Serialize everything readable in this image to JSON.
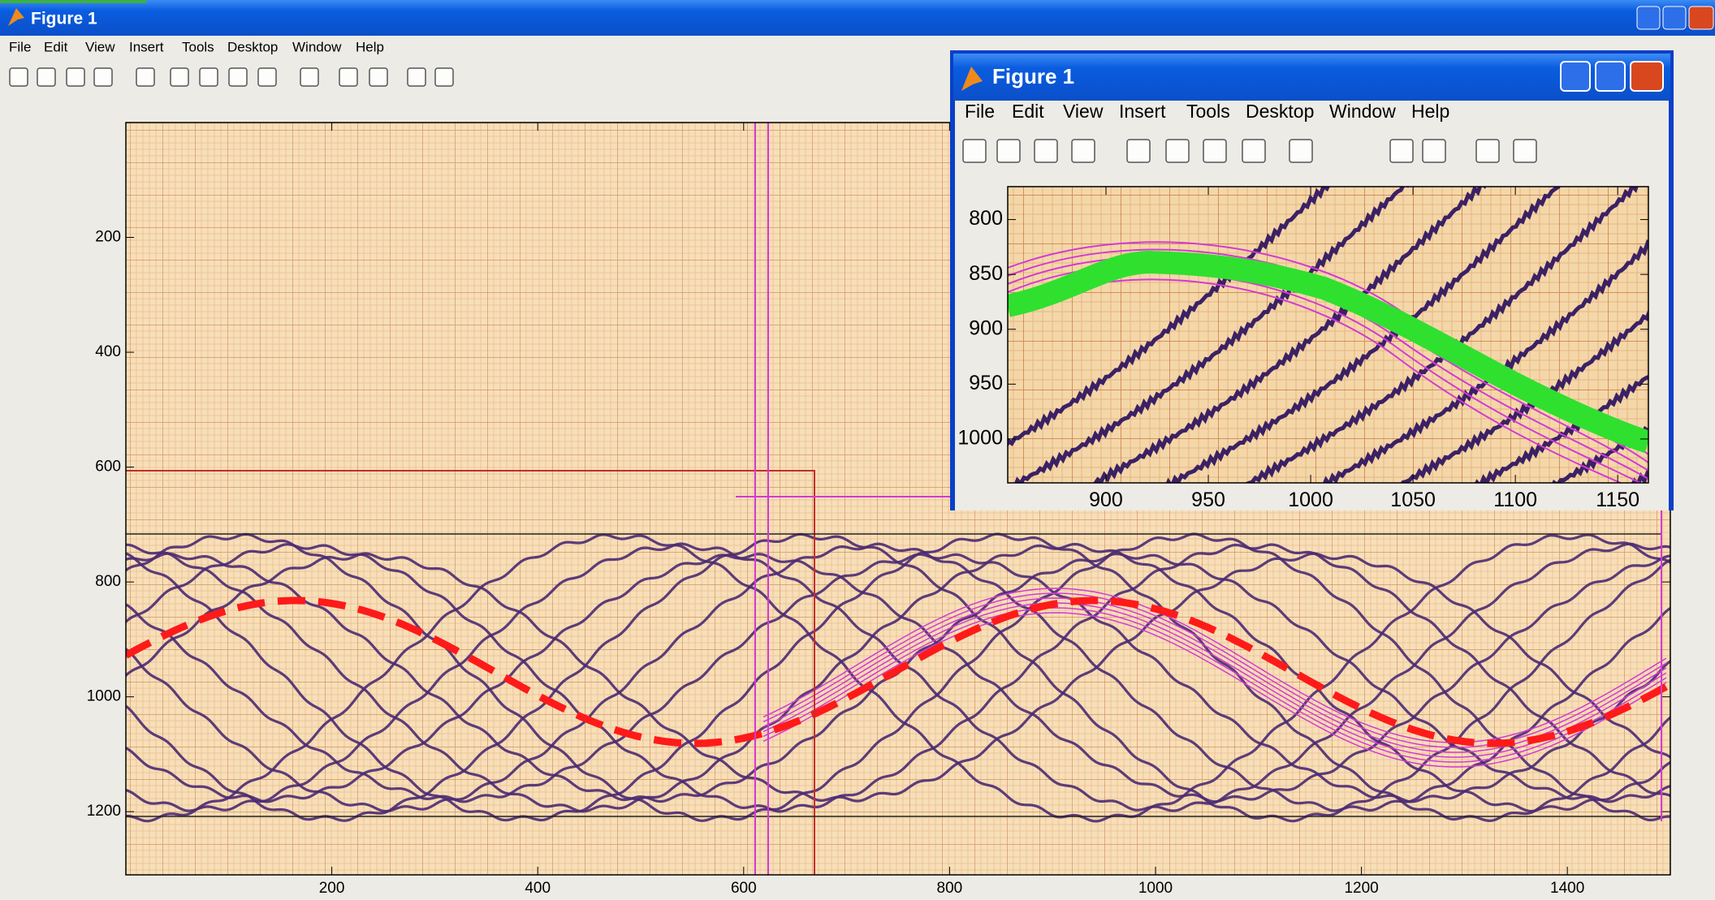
{
  "main_window": {
    "title": "Figure 1",
    "menu": [
      "File",
      "Edit",
      "View",
      "Insert",
      "Tools",
      "Desktop",
      "Window",
      "Help"
    ],
    "axes": {
      "xlim": [
        0,
        1500
      ],
      "ylim": [
        0,
        1310
      ],
      "y_direction": "reverse",
      "xticks": [
        200,
        400,
        600,
        800,
        1000,
        1200,
        1400
      ],
      "yticks": [
        200,
        400,
        600,
        800,
        1000,
        1200
      ]
    }
  },
  "inset_window": {
    "title": "Figure 1",
    "menu": [
      "File",
      "Edit",
      "View",
      "Insert",
      "Tools",
      "Desktop",
      "Window",
      "Help"
    ],
    "axes": {
      "xlim": [
        852,
        1165
      ],
      "ylim": [
        770,
        1040
      ],
      "y_direction": "reverse",
      "xticks": [
        900,
        950,
        1000,
        1050,
        1100,
        1150
      ],
      "yticks": [
        800,
        850,
        900,
        950,
        1000
      ]
    }
  }
}
